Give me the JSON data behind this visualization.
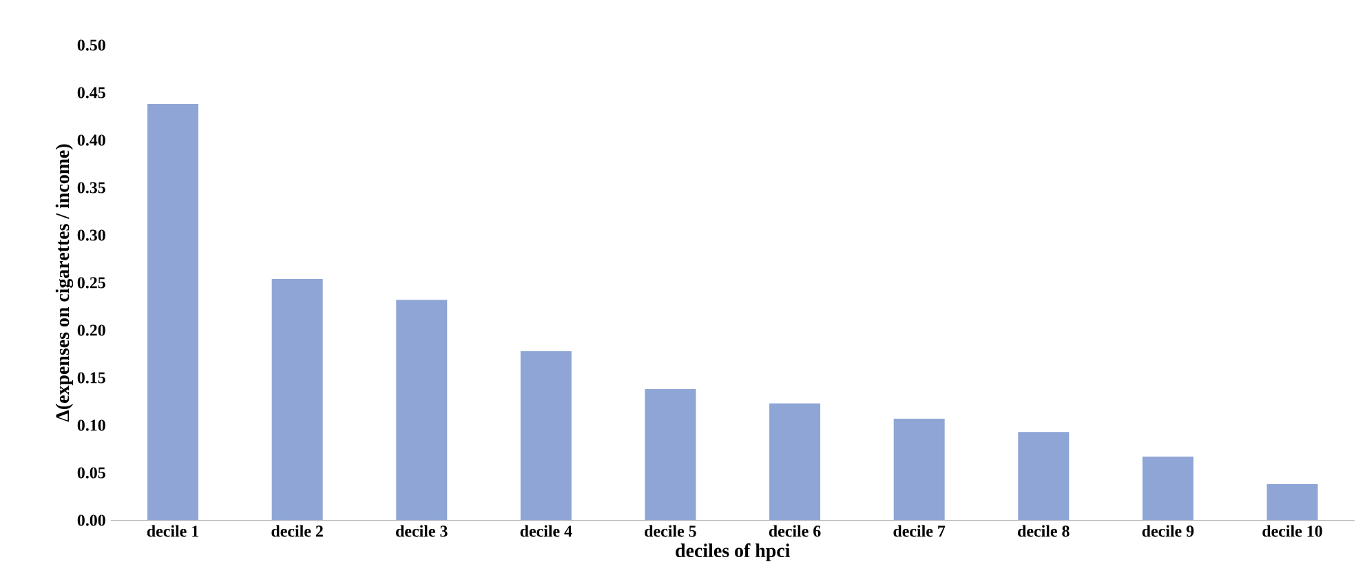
{
  "chart_data": {
    "type": "bar",
    "xlabel": "deciles of hpci",
    "ylabel": "Δ(expenses on cigarettes / income)",
    "categories": [
      "decile 1",
      "decile 2",
      "decile 3",
      "decile 4",
      "decile 5",
      "decile 6",
      "decile 7",
      "decile 8",
      "decile 9",
      "decile 10"
    ],
    "values": [
      0.438,
      0.254,
      0.232,
      0.178,
      0.138,
      0.123,
      0.107,
      0.093,
      0.067,
      0.038
    ],
    "color": "#8fa5d6",
    "ylim": [
      0,
      0.5
    ],
    "yticks": [
      {
        "value": 0,
        "label": "0.00"
      },
      {
        "value": 0.05,
        "label": "0.05"
      },
      {
        "value": 0.1,
        "label": "0.10"
      },
      {
        "value": 0.15,
        "label": "0.15"
      },
      {
        "value": 0.2,
        "label": "0.20"
      },
      {
        "value": 0.25,
        "label": "0.25"
      },
      {
        "value": 0.3,
        "label": "0.30"
      },
      {
        "value": 0.35,
        "label": "0.35"
      },
      {
        "value": 0.4,
        "label": "0.40"
      },
      {
        "value": 0.45,
        "label": "0.45"
      },
      {
        "value": 0.5,
        "label": "0.50"
      }
    ],
    "grid": false
  }
}
